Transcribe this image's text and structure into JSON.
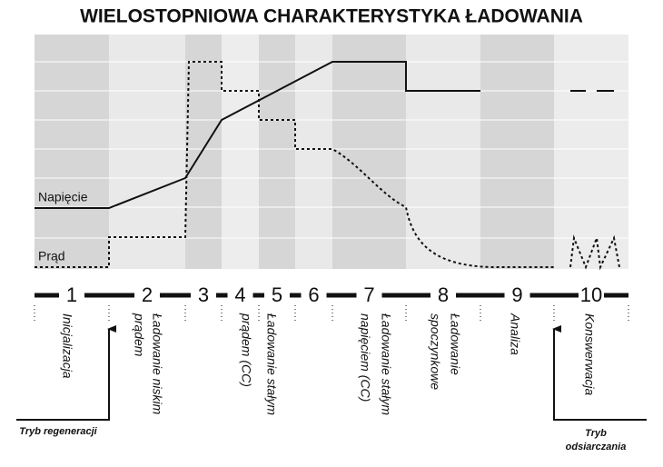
{
  "header": {
    "title": "WIELOSTOPNIOWA CHARAKTERYSTYKA ŁADOWANIA"
  },
  "plot": {
    "voltage_label": "Napięcie",
    "current_label": "Prąd"
  },
  "stages": [
    "1",
    "2",
    "3",
    "4",
    "5",
    "6",
    "7",
    "8",
    "9",
    "10"
  ],
  "descriptions": [
    {
      "lines": [
        "Inicjalizacja"
      ]
    },
    {
      "lines": [
        "Ładowanie niskim",
        "prądem"
      ]
    },
    {
      "lines": [
        "Ładowanie stałym",
        "prądem (CC)"
      ]
    },
    {
      "lines": [
        "Ładowanie stałym",
        "napięciem (CC)"
      ]
    },
    {
      "lines": [
        "Ładowanie",
        "spoczynkowe"
      ]
    },
    {
      "lines": [
        "Analiza"
      ]
    },
    {
      "lines": [
        "Konswerwacja"
      ]
    }
  ],
  "modes": {
    "regeneration": [
      "Tryb regeneracji"
    ],
    "desulfation": [
      "Tryb",
      "odsiarczania"
    ]
  }
}
